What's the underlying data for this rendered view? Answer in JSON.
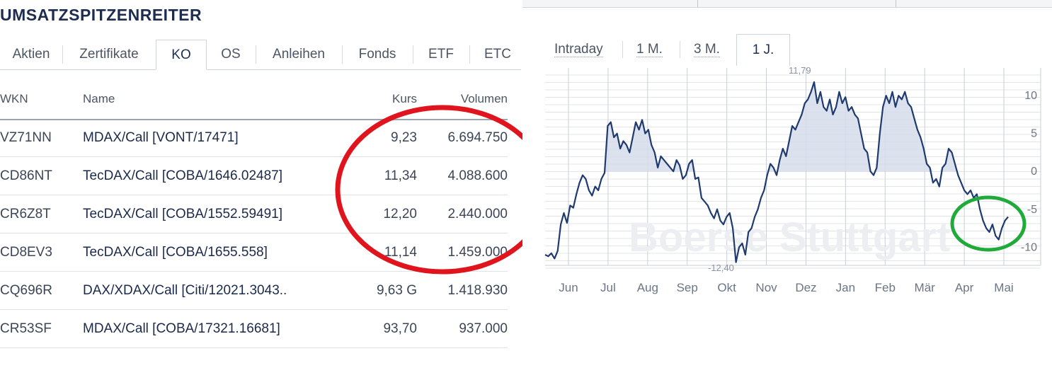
{
  "left": {
    "title": "UMSATZSPITZENREITER",
    "tabs": [
      "Aktien",
      "Zertifikate",
      "KO",
      "OS",
      "Anleihen",
      "Fonds",
      "ETF",
      "ETC"
    ],
    "active_tab": "KO",
    "columns": {
      "wkn": "WKN",
      "name": "Name",
      "kurs": "Kurs",
      "volumen": "Volumen"
    },
    "rows": [
      {
        "wkn": "VZ71NN",
        "name": "MDAX/Call [VONT/17471]",
        "kurs": "9,23",
        "volumen": "6.694.750"
      },
      {
        "wkn": "CD86NT",
        "name": "TecDAX/Call [COBA/1646.02487]",
        "kurs": "11,34",
        "volumen": "4.088.600"
      },
      {
        "wkn": "CR6Z8T",
        "name": "TecDAX/Call [COBA/1552.59491]",
        "kurs": "12,20",
        "volumen": "2.440.000"
      },
      {
        "wkn": "CD8EV3",
        "name": "TecDAX/Call [COBA/1655.558]",
        "kurs": "11,14",
        "volumen": "1.459.000"
      },
      {
        "wkn": "CQ696R",
        "name": "DAX/XDAX/Call [Citi/12021.3043..",
        "kurs": "9,63 G",
        "volumen": "1.418.930"
      },
      {
        "wkn": "CR53SF",
        "name": "MDAX/Call [COBA/17321.16681]",
        "kurs": "93,70",
        "volumen": "937.000"
      }
    ]
  },
  "right": {
    "period_tabs": [
      "Intraday",
      "1 M.",
      "3 M.",
      "1 J."
    ],
    "active_period": "1 J.",
    "watermark": "Boerse Stuttgart",
    "max_label": "11,79",
    "min_label": "-12,40"
  },
  "colors": {
    "line": "#1f3a6e",
    "area_fill": "#d6dceb",
    "red_annotation": "#e0141c",
    "green_annotation": "#1faa3a",
    "grid": "#e2e4e8"
  },
  "chart_data": {
    "type": "area",
    "x_tick_labels": [
      "Jun",
      "Jul",
      "Aug",
      "Sep",
      "Okt",
      "Nov",
      "Dez",
      "Jan",
      "Feb",
      "Mär",
      "Apr",
      "Mai"
    ],
    "y_ticks": [
      10,
      5,
      0,
      -5,
      -10
    ],
    "ylim": [
      -12.4,
      11.79
    ],
    "baseline": 0,
    "annotations": [
      "11,79",
      "-12,40"
    ],
    "values": [
      -11.0,
      -11.2,
      -10.8,
      -11.5,
      -10.5,
      -7.0,
      -5.5,
      -6.8,
      -4.5,
      -4.8,
      -3.0,
      -1.5,
      -0.5,
      -1.0,
      -2.5,
      -3.2,
      -2.0,
      -2.5,
      -1.0,
      -0.2,
      6.0,
      6.5,
      4.5,
      5.0,
      3.0,
      4.0,
      3.5,
      2.5,
      4.5,
      6.5,
      5.5,
      6.8,
      5.0,
      5.5,
      3.5,
      2.5,
      0.5,
      2.0,
      1.5,
      1.0,
      0.5,
      0.0,
      1.5,
      0.8,
      -1.0,
      -0.5,
      1.0,
      1.5,
      -1.0,
      -0.8,
      -3.5,
      -4.0,
      -4.5,
      -5.5,
      -6.2,
      -5.0,
      -6.5,
      -7.0,
      -6.0,
      -5.5,
      -7.5,
      -12.0,
      -10.0,
      -9.5,
      -11.0,
      -8.0,
      -7.5,
      -6.0,
      -5.0,
      -3.5,
      -2.5,
      -0.5,
      1.0,
      0.5,
      -0.5,
      1.5,
      3.0,
      2.0,
      4.0,
      6.0,
      5.5,
      6.5,
      7.5,
      9.0,
      9.5,
      10.5,
      11.79,
      9.0,
      10.5,
      8.5,
      8.0,
      9.5,
      7.5,
      8.5,
      10.5,
      9.0,
      9.8,
      8.0,
      8.5,
      7.5,
      7.0,
      5.0,
      3.0,
      2.5,
      0.0,
      -0.5,
      0.5,
      5.0,
      8.5,
      10.0,
      9.0,
      10.5,
      8.5,
      10.0,
      9.5,
      10.5,
      9.0,
      8.5,
      7.0,
      5.5,
      4.5,
      3.0,
      1.0,
      0.5,
      -1.5,
      -1.0,
      -2.0,
      0.5,
      1.0,
      3.0,
      2.5,
      1.0,
      -0.5,
      -1.5,
      -2.5,
      -3.0,
      -2.5,
      -3.5,
      -3.0,
      -5.0,
      -6.5,
      -7.5,
      -8.0,
      -7.0,
      -8.5,
      -9.0,
      -7.5,
      -6.5,
      -6.0
    ]
  }
}
